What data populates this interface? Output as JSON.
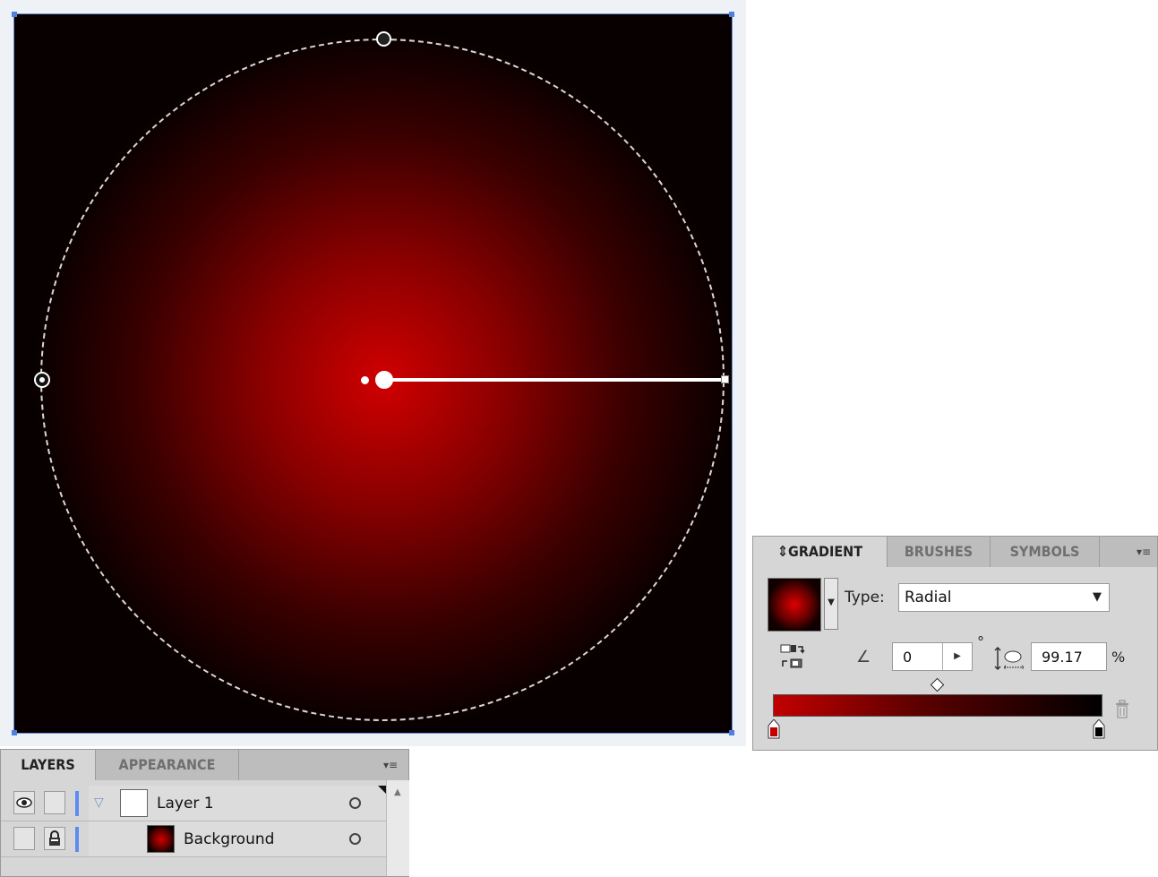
{
  "gradient_panel": {
    "tabs": [
      "GRADIENT",
      "BRUSHES",
      "SYMBOLS"
    ],
    "active_tab_marker": "⇕",
    "type_label": "Type:",
    "type_value": "Radial",
    "angle_value": "0",
    "degree_symbol": "°",
    "aspect_value": "99.17",
    "percent_symbol": "%",
    "stops": [
      {
        "position": 0,
        "color": "#c20000"
      },
      {
        "position": 100,
        "color": "#000000"
      }
    ],
    "midpoint": 50
  },
  "layers_panel": {
    "tabs": [
      "LAYERS",
      "APPEARANCE"
    ],
    "rows": [
      {
        "name": "Layer 1"
      },
      {
        "name": "Background"
      }
    ]
  },
  "icons": {
    "panel_menu": "panel-menu-icon",
    "visibility": "eye-icon",
    "lock": "lock-icon",
    "disclosure": "triangle-down-icon",
    "target": "target-circle-icon"
  },
  "colors": {
    "gradient_center": "#d00000",
    "gradient_edge": "#080000",
    "selection_blue": "#5b8cf0"
  }
}
